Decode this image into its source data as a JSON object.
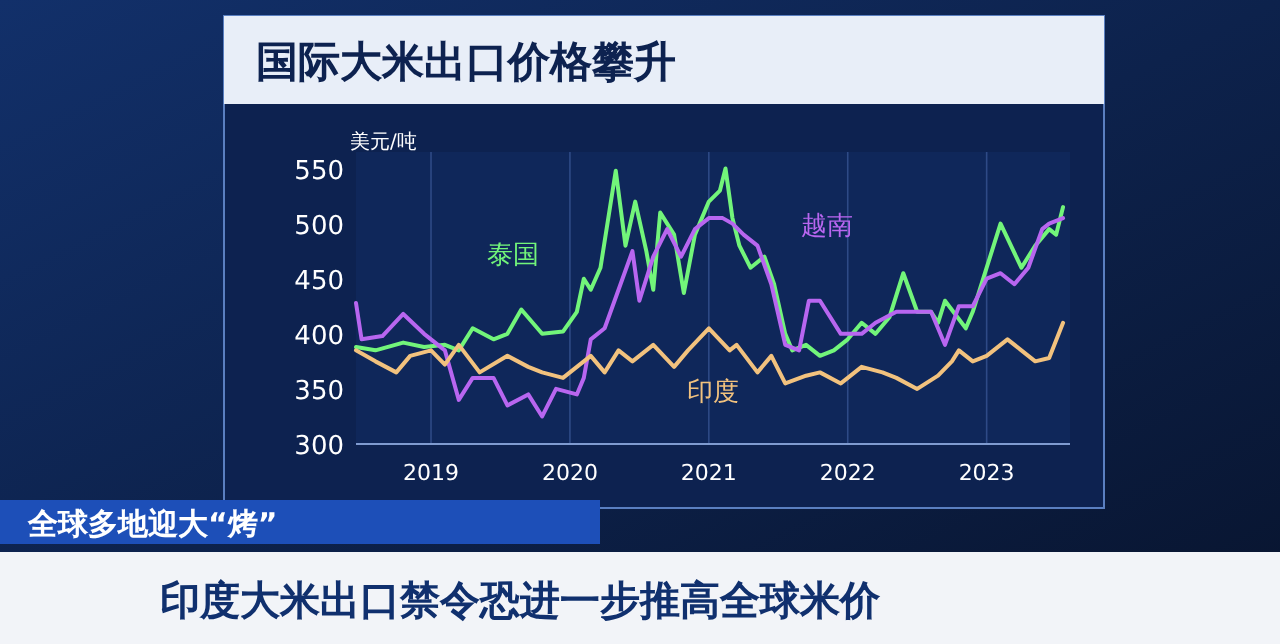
{
  "chart_data": {
    "type": "line",
    "title": "国际大米出口价格攀升",
    "ylabel": "美元/吨",
    "xlim": [
      2018.46,
      2023.6
    ],
    "xticks": [
      2019,
      2020,
      2021,
      2022,
      2023
    ],
    "ylim": [
      300,
      565
    ],
    "yticks": [
      300,
      350,
      400,
      450,
      500,
      550
    ],
    "grid": "x",
    "legend": false,
    "series": [
      {
        "name": "泰国",
        "color": "#72f57a",
        "x": [
          2018.46,
          2018.6,
          2018.8,
          2018.95,
          2019.1,
          2019.2,
          2019.3,
          2019.45,
          2019.55,
          2019.65,
          2019.8,
          2019.95,
          2020.05,
          2020.1,
          2020.15,
          2020.22,
          2020.33,
          2020.4,
          2020.47,
          2020.55,
          2020.6,
          2020.65,
          2020.75,
          2020.82,
          2020.9,
          2021.0,
          2021.08,
          2021.12,
          2021.17,
          2021.22,
          2021.3,
          2021.4,
          2021.47,
          2021.55,
          2021.6,
          2021.7,
          2021.8,
          2021.9,
          2022.0,
          2022.1,
          2022.2,
          2022.3,
          2022.4,
          2022.5,
          2022.6,
          2022.65,
          2022.7,
          2022.85,
          2022.9,
          2023.0,
          2023.1,
          2023.25,
          2023.35,
          2023.45,
          2023.5,
          2023.55
        ],
        "values": [
          388,
          385,
          392,
          388,
          390,
          385,
          405,
          395,
          400,
          422,
          400,
          402,
          420,
          450,
          440,
          460,
          548,
          480,
          520,
          475,
          440,
          510,
          490,
          437,
          490,
          520,
          530,
          550,
          505,
          480,
          460,
          470,
          445,
          400,
          385,
          390,
          380,
          385,
          395,
          410,
          400,
          415,
          455,
          420,
          420,
          410,
          430,
          405,
          420,
          460,
          500,
          460,
          480,
          495,
          490,
          515
        ]
      },
      {
        "name": "越南",
        "color": "#b866f0",
        "x": [
          2018.46,
          2018.5,
          2018.65,
          2018.8,
          2018.95,
          2019.1,
          2019.2,
          2019.3,
          2019.45,
          2019.55,
          2019.7,
          2019.8,
          2019.9,
          2020.05,
          2020.1,
          2020.15,
          2020.25,
          2020.35,
          2020.45,
          2020.5,
          2020.6,
          2020.7,
          2020.8,
          2020.9,
          2021.0,
          2021.1,
          2021.17,
          2021.25,
          2021.35,
          2021.45,
          2021.55,
          2021.65,
          2021.72,
          2021.8,
          2021.95,
          2022.1,
          2022.2,
          2022.35,
          2022.5,
          2022.6,
          2022.7,
          2022.8,
          2022.9,
          2023.0,
          2023.1,
          2023.2,
          2023.3,
          2023.4,
          2023.45,
          2023.55
        ],
        "values": [
          428,
          395,
          398,
          418,
          400,
          385,
          340,
          360,
          360,
          335,
          345,
          325,
          350,
          345,
          360,
          395,
          405,
          440,
          475,
          430,
          470,
          495,
          470,
          495,
          505,
          505,
          500,
          490,
          480,
          445,
          390,
          385,
          430,
          430,
          400,
          400,
          410,
          420,
          420,
          420,
          390,
          425,
          425,
          450,
          455,
          445,
          460,
          495,
          500,
          505
        ]
      },
      {
        "name": "印度",
        "color": "#f2c27e",
        "x": [
          2018.46,
          2018.6,
          2018.75,
          2018.85,
          2019.0,
          2019.1,
          2019.2,
          2019.35,
          2019.55,
          2019.7,
          2019.8,
          2019.95,
          2020.05,
          2020.15,
          2020.25,
          2020.35,
          2020.45,
          2020.6,
          2020.75,
          2020.85,
          2021.0,
          2021.15,
          2021.2,
          2021.35,
          2021.45,
          2021.55,
          2021.7,
          2021.8,
          2021.95,
          2022.1,
          2022.25,
          2022.35,
          2022.5,
          2022.65,
          2022.75,
          2022.8,
          2022.9,
          2023.0,
          2023.15,
          2023.25,
          2023.35,
          2023.45,
          2023.55
        ],
        "values": [
          385,
          375,
          365,
          380,
          385,
          372,
          390,
          365,
          380,
          370,
          365,
          360,
          370,
          380,
          365,
          385,
          375,
          390,
          370,
          385,
          405,
          385,
          390,
          365,
          380,
          355,
          362,
          365,
          355,
          370,
          365,
          360,
          350,
          362,
          375,
          385,
          375,
          380,
          395,
          385,
          375,
          378,
          410
        ]
      }
    ],
    "annotations": [
      "全球多地迎大“烤”",
      "印度大米出口禁令恐进一步推高全球米价"
    ]
  }
}
